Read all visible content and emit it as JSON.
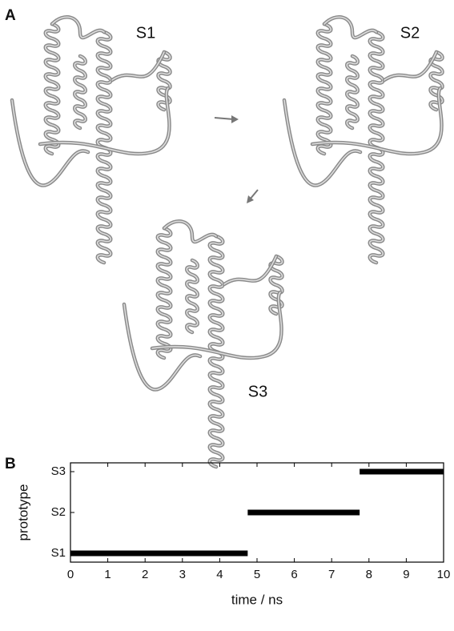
{
  "panel_a": {
    "label": "A",
    "states": [
      "S1",
      "S2",
      "S3"
    ]
  },
  "chart_data": {
    "type": "timeline",
    "panel_label": "B",
    "categories": [
      "S1",
      "S2",
      "S3"
    ],
    "segments": [
      {
        "category": "S1",
        "start": 0,
        "end": 4.75
      },
      {
        "category": "S2",
        "start": 4.75,
        "end": 7.75
      },
      {
        "category": "S3",
        "start": 7.75,
        "end": 10
      }
    ],
    "color": "#000000",
    "xlim": [
      0,
      10
    ],
    "xticks": [
      0,
      1,
      2,
      3,
      4,
      5,
      6,
      7,
      8,
      9,
      10
    ],
    "xlabel": "time / ns",
    "ylabel": "prototype"
  }
}
